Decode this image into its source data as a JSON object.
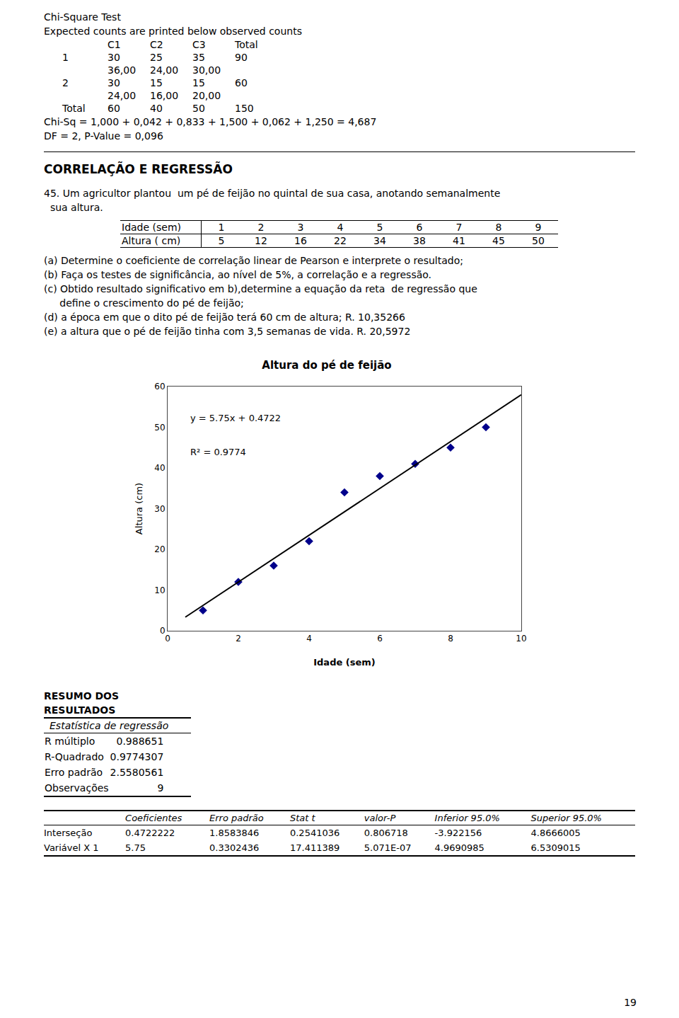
{
  "page": {
    "chi_square": {
      "title": "Chi-Square Test",
      "subtitle": "Expected counts are printed below observed counts",
      "header": [
        "C1",
        "C2",
        "C3",
        "Total"
      ],
      "rows": [
        [
          "1",
          "30",
          "25",
          "35",
          "90"
        ],
        [
          null,
          "36,00",
          "24,00",
          "30,00",
          null
        ],
        [
          "2",
          "30",
          "15",
          "15",
          "60"
        ],
        [
          null,
          "24,00",
          "16,00",
          "20,00",
          null
        ],
        [
          "Total",
          "60",
          "40",
          "50",
          "150"
        ]
      ],
      "chi_sq_line": "Chi-Sq = 1,000 + 0,042 + 0,833 + 1,500 + 0,062 + 1,250 = 4,687",
      "df_line": "DF = 2, P-Value = 0,096"
    },
    "section_title": "CORRELAÇÃO E REGRESSÃO",
    "problem": [
      "45. Um agricultor plantou  um pé de feijão no quintal de sua casa, anotando semanalmente",
      "  sua altura."
    ],
    "data_table": [
      [
        "Idade (sem)",
        "1",
        "2",
        "3",
        "4",
        "5",
        "6",
        "7",
        "8",
        "9"
      ],
      [
        "Altura ( cm)",
        "5",
        "12",
        "16",
        "22",
        "34",
        "38",
        "41",
        "45",
        "50"
      ]
    ],
    "items": [
      "(a) Determine o coeficiente de correlação linear de Pearson e interprete o resultado;",
      "(b) Faça os testes de significância, ao nível de 5%, a correlação e a regressão.",
      "(c) Obtido resultado significativo em b),determine a equação da reta  de regressão que",
      "     define o crescimento do pé de feijão;",
      "(d) a época em que o dito pé de feijão terá 60 cm de altura; R. 10,35266",
      "(e) a altura que o pé de feijão tinha com 3,5 semanas de vida. R. 20,5972"
    ],
    "resumo": {
      "title": "RESUMO DOS RESULTADOS",
      "subtitle": "Estatística de regressão",
      "rows": [
        [
          "R múltiplo",
          "0.988651"
        ],
        [
          "R-Quadrado",
          "0.9774307"
        ],
        [
          "Erro padrão",
          "2.5580561"
        ],
        [
          "Observações",
          "9"
        ]
      ]
    },
    "coefficients": {
      "headers": [
        "Coeficientes",
        "Erro padrão",
        "Stat t",
        "valor-P",
        "Inferior 95.0%",
        "Superior 95.0%"
      ],
      "rows": [
        [
          "Interseção",
          "0.4722222",
          "1.8583846",
          "0.2541036",
          "0.806718",
          "-3.922156",
          "4.8666005"
        ],
        [
          "Variável X 1",
          "5.75",
          "0.3302436",
          "17.411389",
          "5.071E-07",
          "4.9690985",
          "6.5309015"
        ]
      ]
    },
    "page_number": "19"
  },
  "chart_data": {
    "type": "scatter",
    "title": "Altura do pé de feijão",
    "x_label": "Idade (sem)",
    "y_label": "Altura (cm)",
    "series": [
      {
        "type": "scatter",
        "marker": "diamond",
        "color": "#00008B",
        "x": [
          1,
          2,
          3,
          4,
          5,
          6,
          7,
          8,
          9
        ],
        "values": [
          5,
          12,
          16,
          22,
          34,
          38,
          41,
          45,
          50
        ]
      },
      {
        "type": "line",
        "line_style": "solid",
        "color": "#000000",
        "x": [
          0.5,
          10
        ],
        "values": [
          3.3472,
          57.9722
        ]
      }
    ],
    "annotations": [
      "y = 5.75x + 0.4722",
      "R² = 0.9774"
    ],
    "xlim": [
      0,
      10
    ],
    "ylim": [
      0,
      60
    ],
    "xticks": [
      0,
      2,
      4,
      6,
      8,
      10
    ],
    "yticks": [
      0,
      10,
      20,
      30,
      40,
      50,
      60
    ],
    "grid": false
  }
}
